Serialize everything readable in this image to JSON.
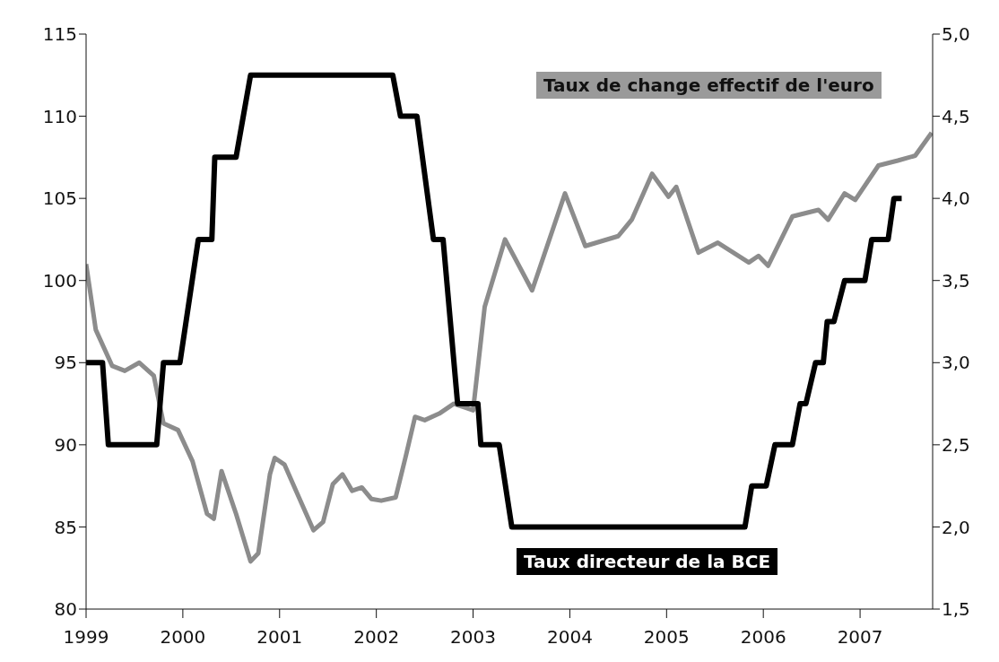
{
  "chart_data": {
    "type": "line",
    "legend": false,
    "xlim": [
      1999,
      2007.75
    ],
    "xticks": [
      1999,
      2000,
      2001,
      2002,
      2003,
      2004,
      2005,
      2006,
      2007
    ],
    "ylim": [
      80,
      115
    ],
    "yticks": [
      80,
      85,
      90,
      95,
      100,
      105,
      110,
      115
    ],
    "y2lim": [
      1.5,
      5.0
    ],
    "y2ticks": [
      {
        "value": 1.5,
        "label": "1,5"
      },
      {
        "value": 2,
        "label": "2,0"
      },
      {
        "value": 2.5,
        "label": "2,5"
      },
      {
        "value": 3,
        "label": "3,0"
      },
      {
        "value": 3.5,
        "label": "3,5"
      },
      {
        "value": 4,
        "label": "4,0"
      },
      {
        "value": 4.5,
        "label": "4,5"
      },
      {
        "value": 5,
        "label": "5,0"
      }
    ],
    "series": [
      {
        "name": "Taux de change effectif de l'euro",
        "color": "#8c8c8c",
        "x": [
          1999.0,
          1999.1,
          1999.27,
          1999.4,
          1999.55,
          1999.7,
          1999.8,
          1999.95,
          2000.1,
          2000.25,
          2000.32,
          2000.4,
          2000.55,
          2000.7,
          2000.78,
          2000.9,
          2000.95,
          2001.05,
          2001.2,
          2001.35,
          2001.45,
          2001.55,
          2001.65,
          2001.75,
          2001.85,
          2001.95,
          2002.05,
          2002.2,
          2002.3,
          2002.4,
          2002.5,
          2002.65,
          2002.8,
          2002.9,
          2003.0,
          2003.12,
          2003.33,
          2003.61,
          2003.95,
          2004.16,
          2004.5,
          2004.64,
          2004.85,
          2005.02,
          2005.1,
          2005.33,
          2005.53,
          2005.85,
          2005.95,
          2006.05,
          2006.3,
          2006.57,
          2006.67,
          2006.84,
          2006.95,
          2007.19,
          2007.39,
          2007.57,
          2007.74
        ],
        "values": [
          101,
          97,
          94.8,
          94.5,
          95,
          94.2,
          91.3,
          90.9,
          89,
          85.8,
          85.5,
          88.4,
          85.8,
          82.9,
          83.4,
          88.2,
          89.2,
          88.8,
          86.8,
          84.8,
          85.3,
          87.6,
          88.2,
          87.2,
          87.4,
          86.7,
          86.6,
          86.8,
          89.2,
          91.7,
          91.5,
          91.9,
          92.5,
          92.3,
          92.1,
          98.4,
          102.5,
          99.4,
          105.3,
          102.1,
          102.7,
          103.7,
          106.5,
          105.1,
          105.7,
          101.7,
          102.3,
          101.1,
          101.5,
          100.9,
          103.9,
          104.3,
          103.7,
          105.3,
          104.9,
          107,
          107.3,
          107.6,
          109
        ]
      },
      {
        "name": "Taux directeur de la BCE",
        "color": "#000000",
        "axis": "y2",
        "x": [
          1999.0,
          1999.17,
          1999.23,
          1999.73,
          1999.8,
          1999.97,
          2000.16,
          2000.3,
          2000.33,
          2000.55,
          2000.7,
          2002.17,
          2002.25,
          2002.42,
          2002.59,
          2002.69,
          2002.84,
          2003.05,
          2003.08,
          2003.27,
          2003.4,
          2005.81,
          2005.88,
          2006.03,
          2006.12,
          2006.3,
          2006.38,
          2006.44,
          2006.54,
          2006.62,
          2006.66,
          2006.73,
          2006.84,
          2007.05,
          2007.12,
          2007.29,
          2007.35,
          2007.43
        ],
        "values": [
          3,
          3,
          2.5,
          2.5,
          3,
          3,
          3.75,
          3.75,
          4.25,
          4.25,
          4.75,
          4.75,
          4.5,
          4.5,
          3.75,
          3.75,
          2.75,
          2.75,
          2.5,
          2.5,
          2,
          2,
          2.25,
          2.25,
          2.5,
          2.5,
          2.75,
          2.75,
          3,
          3,
          3.25,
          3.25,
          3.5,
          3.5,
          3.75,
          3.75,
          4,
          4
        ]
      }
    ]
  }
}
